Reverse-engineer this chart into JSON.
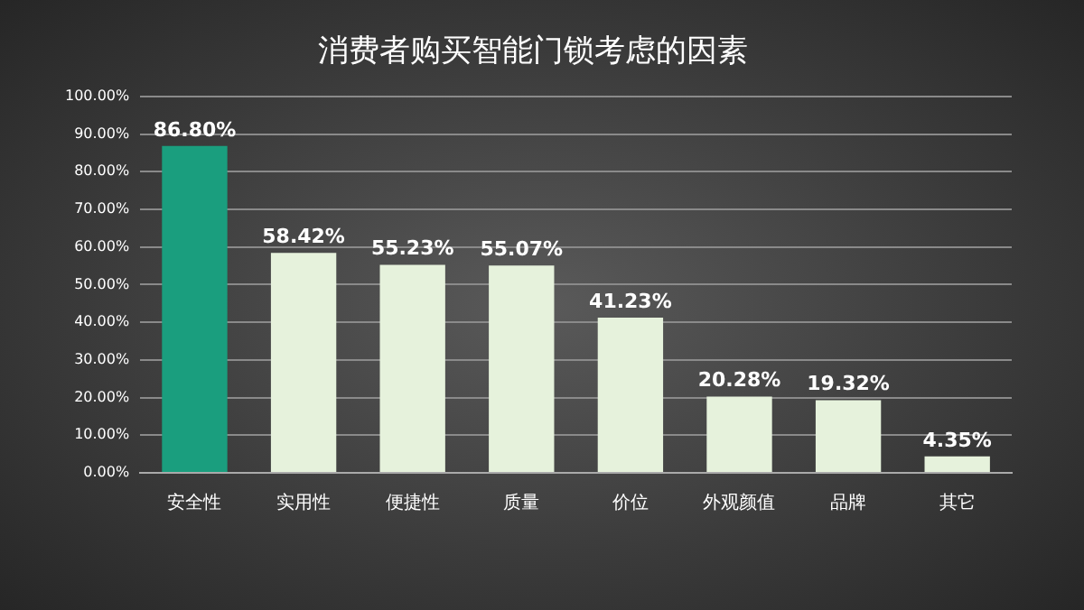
{
  "chart_data": {
    "type": "bar",
    "title": "消费者购买智能门锁考虑的因素",
    "categories": [
      "安全性",
      "实用性",
      "便捷性",
      "质量",
      "价位",
      "外观颜值",
      "品牌",
      "其它"
    ],
    "values": [
      86.8,
      58.42,
      55.23,
      55.07,
      41.23,
      20.28,
      19.32,
      4.35
    ],
    "value_labels": [
      "86.80%",
      "58.42%",
      "55.23%",
      "55.07%",
      "41.23%",
      "20.28%",
      "19.32%",
      "4.35%"
    ],
    "colors": [
      "#1a9e7e",
      "#e6f2dc",
      "#e6f2dc",
      "#e6f2dc",
      "#e6f2dc",
      "#e6f2dc",
      "#e6f2dc",
      "#e6f2dc"
    ],
    "ylim": [
      0,
      100
    ],
    "yticks": [
      {
        "value": 0,
        "label": "0.00%"
      },
      {
        "value": 10,
        "label": "10.00%"
      },
      {
        "value": 20,
        "label": "20.00%"
      },
      {
        "value": 30,
        "label": "30.00%"
      },
      {
        "value": 40,
        "label": "40.00%"
      },
      {
        "value": 50,
        "label": "50.00%"
      },
      {
        "value": 60,
        "label": "60.00%"
      },
      {
        "value": 70,
        "label": "70.00%"
      },
      {
        "value": 80,
        "label": "80.00%"
      },
      {
        "value": 90,
        "label": "90.00%"
      },
      {
        "value": 100,
        "label": "100.00%"
      }
    ],
    "grid": "y",
    "legend": false
  }
}
